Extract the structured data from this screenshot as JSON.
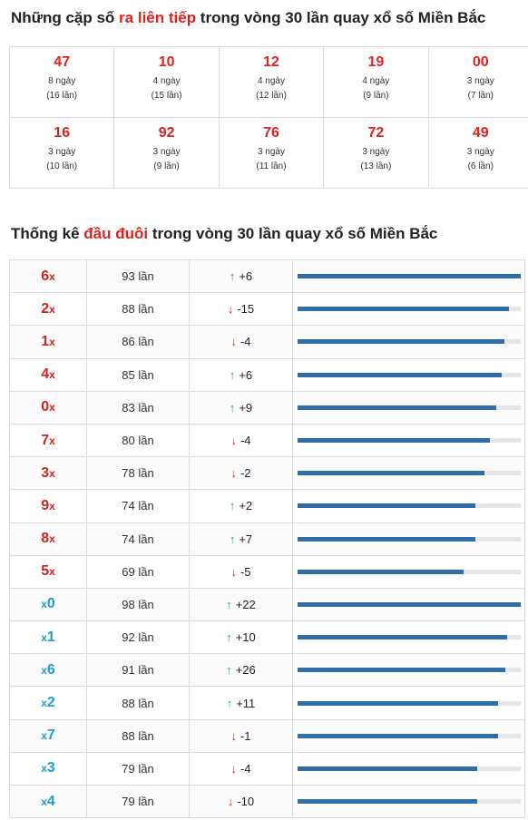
{
  "section1": {
    "prefix": "Những cặp số ",
    "highlight": "ra liên tiếp",
    "suffix": " trong vòng 30 lần quay xổ số Miền Bắc",
    "pairs": [
      {
        "number": "47",
        "days": "8 ngày",
        "count": "(16 lần)"
      },
      {
        "number": "10",
        "days": "4 ngày",
        "count": "(15 lần)"
      },
      {
        "number": "12",
        "days": "4 ngày",
        "count": "(12 lần)"
      },
      {
        "number": "19",
        "days": "4 ngày",
        "count": "(9 lần)"
      },
      {
        "number": "00",
        "days": "3 ngày",
        "count": "(7 lần)"
      },
      {
        "number": "16",
        "days": "3 ngày",
        "count": "(10 lần)"
      },
      {
        "number": "92",
        "days": "3 ngày",
        "count": "(9 lần)"
      },
      {
        "number": "76",
        "days": "3 ngày",
        "count": "(11 lần)"
      },
      {
        "number": "72",
        "days": "3 ngày",
        "count": "(13 lần)"
      },
      {
        "number": "49",
        "days": "3 ngày",
        "count": "(6 lần)"
      }
    ]
  },
  "section2": {
    "prefix": "Thống kê ",
    "highlight": "đầu đuôi",
    "suffix": " trong vòng 30 lần quay xổ số Miền Bắc",
    "rows": [
      {
        "digit": "6",
        "label_type": "head",
        "count": "93 lần",
        "trend": "up",
        "change": "+6",
        "fill": 1.0
      },
      {
        "digit": "2",
        "label_type": "head",
        "count": "88 lần",
        "trend": "down",
        "change": "-15",
        "fill": 0.946
      },
      {
        "digit": "1",
        "label_type": "head",
        "count": "86 lần",
        "trend": "down",
        "change": "-4",
        "fill": 0.925
      },
      {
        "digit": "4",
        "label_type": "head",
        "count": "85 lần",
        "trend": "up",
        "change": "+6",
        "fill": 0.914
      },
      {
        "digit": "0",
        "label_type": "head",
        "count": "83 lần",
        "trend": "up",
        "change": "+9",
        "fill": 0.892
      },
      {
        "digit": "7",
        "label_type": "head",
        "count": "80 lần",
        "trend": "down",
        "change": "-4",
        "fill": 0.86
      },
      {
        "digit": "3",
        "label_type": "head",
        "count": "78 lần",
        "trend": "down",
        "change": "-2",
        "fill": 0.839
      },
      {
        "digit": "9",
        "label_type": "head",
        "count": "74 lần",
        "trend": "up",
        "change": "+2",
        "fill": 0.796
      },
      {
        "digit": "8",
        "label_type": "head",
        "count": "74 lần",
        "trend": "up",
        "change": "+7",
        "fill": 0.796
      },
      {
        "digit": "5",
        "label_type": "head",
        "count": "69 lần",
        "trend": "down",
        "change": "-5",
        "fill": 0.742
      },
      {
        "digit": "0",
        "label_type": "tail",
        "count": "98 lần",
        "trend": "up",
        "change": "+22",
        "fill": 1.0
      },
      {
        "digit": "1",
        "label_type": "tail",
        "count": "92 lần",
        "trend": "up",
        "change": "+10",
        "fill": 0.939
      },
      {
        "digit": "6",
        "label_type": "tail",
        "count": "91 lần",
        "trend": "up",
        "change": "+26",
        "fill": 0.929
      },
      {
        "digit": "2",
        "label_type": "tail",
        "count": "88 lần",
        "trend": "up",
        "change": "+11",
        "fill": 0.898
      },
      {
        "digit": "7",
        "label_type": "tail",
        "count": "88 lần",
        "trend": "down",
        "change": "-1",
        "fill": 0.898
      },
      {
        "digit": "3",
        "label_type": "tail",
        "count": "79 lần",
        "trend": "down",
        "change": "-4",
        "fill": 0.806
      },
      {
        "digit": "4",
        "label_type": "tail",
        "count": "79 lần",
        "trend": "down",
        "change": "-10",
        "fill": 0.806
      }
    ]
  },
  "x_symbol": "x",
  "arrows": {
    "up": "↑",
    "down": "↓"
  },
  "colors": {
    "highlight": "#e0211d",
    "head_label": "#d4231c",
    "tail_label": "#1a9fd0",
    "bar": "#2f6ea8",
    "up": "#1cb35a",
    "down": "#e0211d"
  }
}
